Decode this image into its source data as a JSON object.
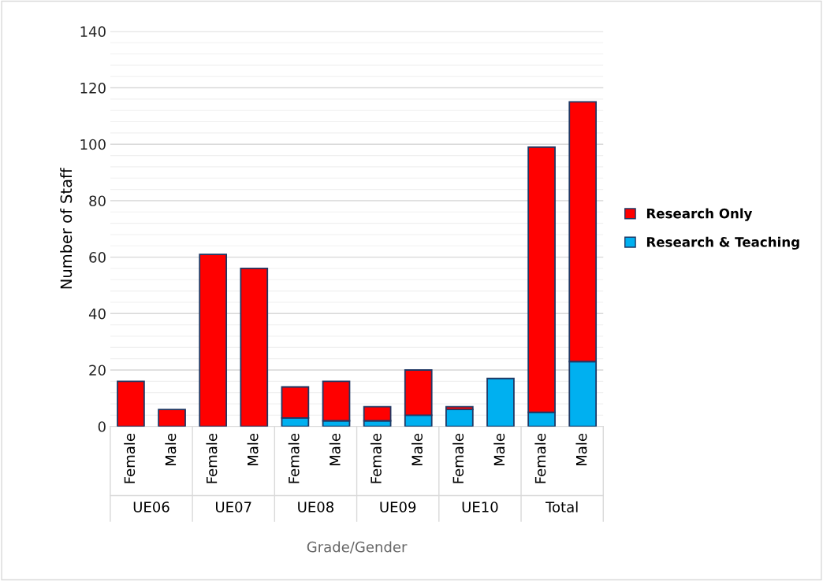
{
  "chart_data": {
    "type": "bar",
    "stacked": true,
    "xlabel": "Grade/Gender",
    "ylabel": "Number of Staff",
    "categories": [
      "Female",
      "Male",
      "Female",
      "Male",
      "Female",
      "Male",
      "Female",
      "Male",
      "Female",
      "Male",
      "Female",
      "Male"
    ],
    "annotations": [
      "UE06",
      "UE07",
      "UE08",
      "UE09",
      "UE10",
      "Total"
    ],
    "series": [
      {
        "name": "Research & Teaching",
        "color": "#00b0f0",
        "values": [
          0,
          0,
          0,
          0,
          3,
          2,
          2,
          4,
          6,
          17,
          5,
          23
        ]
      },
      {
        "name": "Research Only",
        "color": "#ff0000",
        "values": [
          16,
          6,
          61,
          56,
          11,
          14,
          5,
          16,
          1,
          0,
          94,
          92
        ]
      }
    ],
    "ylim": [
      0,
      140
    ],
    "yticks": [
      0,
      20,
      40,
      60,
      80,
      100,
      120,
      140
    ],
    "grid": "y",
    "legend": "right"
  }
}
